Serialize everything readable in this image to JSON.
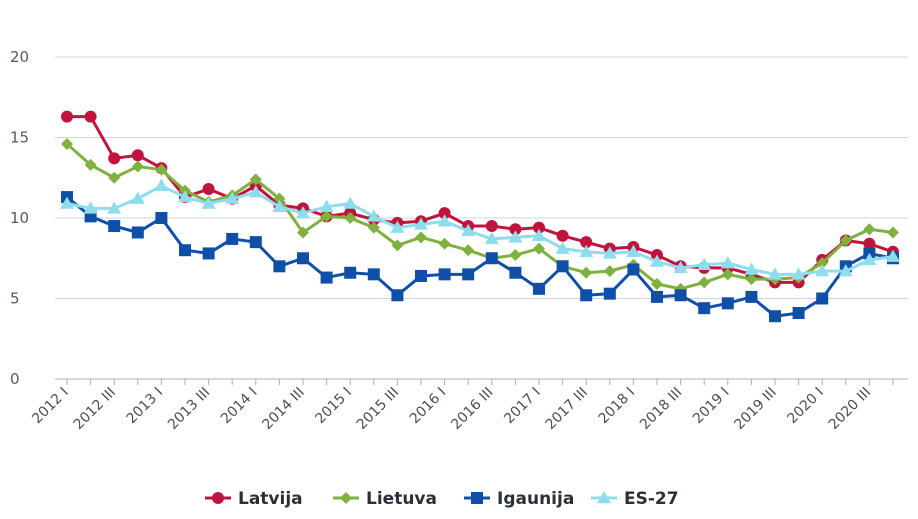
{
  "chart_data": {
    "type": "line",
    "title": "",
    "xlabel": "",
    "ylabel": "",
    "ylim": [
      0,
      20
    ],
    "yticks": [
      0,
      5,
      10,
      15,
      20
    ],
    "grid": "horizontal",
    "legend_position": "bottom",
    "x": [
      "2012 I",
      "2012 II",
      "2012 III",
      "2012 IV",
      "2013 I",
      "2013 II",
      "2013 III",
      "2013 IV",
      "2014 I",
      "2014 II",
      "2014 III",
      "2014 IV",
      "2015 I",
      "2015 II",
      "2015 III",
      "2015 IV",
      "2016 I",
      "2016 II",
      "2016 III",
      "2016 IV",
      "2017 I",
      "2017 II",
      "2017 III",
      "2017 IV",
      "2018 I",
      "2018 II",
      "2018 III",
      "2018 IV",
      "2019 I",
      "2019 II",
      "2019 III",
      "2019 IV",
      "2020 I",
      "2020 II",
      "2020 III",
      "2020 IV"
    ],
    "x_tick_labels": [
      "2012 I",
      "2012 III",
      "2013 I",
      "2013 III",
      "2014 I",
      "2014 III",
      "2015 I",
      "2015 III",
      "2016 I",
      "2016 III",
      "2017 I",
      "2017 III",
      "2018 I",
      "2018 III",
      "2019 I",
      "2019 III",
      "2020 I",
      "2020 III"
    ],
    "series": [
      {
        "name": "Latvija",
        "color": "#c0143c",
        "marker": "circle",
        "values": [
          16.3,
          16.3,
          13.7,
          13.9,
          13.1,
          11.3,
          11.8,
          11.2,
          12.0,
          10.8,
          10.6,
          10.1,
          10.3,
          9.9,
          9.7,
          9.8,
          10.3,
          9.5,
          9.5,
          9.3,
          9.4,
          8.9,
          8.5,
          8.1,
          8.2,
          7.7,
          7.0,
          6.9,
          6.9,
          6.5,
          6.0,
          6.0,
          7.4,
          8.6,
          8.4,
          7.9
        ]
      },
      {
        "name": "Lietuva",
        "color": "#7fb040",
        "marker": "diamond",
        "values": [
          14.6,
          13.3,
          12.5,
          13.2,
          13.0,
          11.7,
          11.0,
          11.4,
          12.4,
          11.2,
          9.1,
          10.1,
          10.0,
          9.4,
          8.3,
          8.8,
          8.4,
          8.0,
          7.5,
          7.7,
          8.1,
          7.0,
          6.6,
          6.7,
          7.1,
          5.9,
          5.6,
          6.0,
          6.5,
          6.2,
          6.2,
          6.3,
          7.2,
          8.6,
          9.3,
          9.1
        ]
      },
      {
        "name": "Igaunija",
        "color": "#0f4fa8",
        "marker": "square",
        "values": [
          11.3,
          10.1,
          9.5,
          9.1,
          10.0,
          8.0,
          7.8,
          8.7,
          8.5,
          7.0,
          7.5,
          6.3,
          6.6,
          6.5,
          5.2,
          6.4,
          6.5,
          6.5,
          7.5,
          6.6,
          5.6,
          7.0,
          5.2,
          5.3,
          6.8,
          5.1,
          5.2,
          4.4,
          4.7,
          5.1,
          3.9,
          4.1,
          5.0,
          7.0,
          7.8,
          7.5
        ]
      },
      {
        "name": "ES-27",
        "color": "#8fdcec",
        "marker": "triangle",
        "values": [
          10.9,
          10.6,
          10.6,
          11.2,
          12.0,
          11.3,
          10.9,
          11.2,
          11.6,
          10.7,
          10.3,
          10.7,
          10.9,
          10.1,
          9.4,
          9.6,
          9.8,
          9.2,
          8.7,
          8.8,
          8.9,
          8.1,
          7.9,
          7.8,
          7.9,
          7.3,
          6.9,
          7.1,
          7.2,
          6.8,
          6.5,
          6.5,
          6.7,
          6.7,
          7.4,
          7.6
        ]
      }
    ]
  }
}
